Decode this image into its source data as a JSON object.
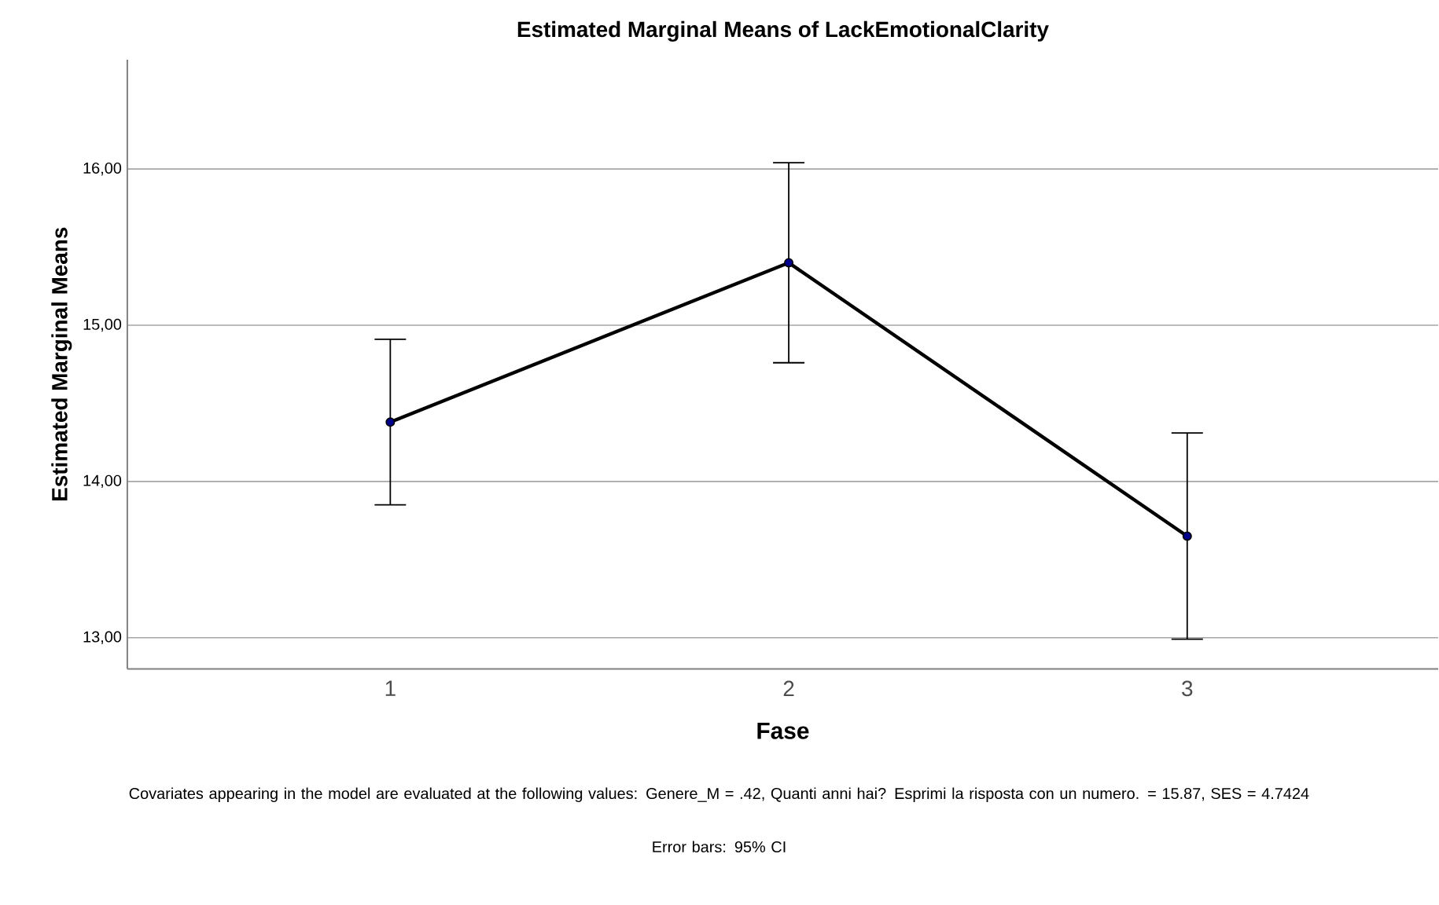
{
  "chart_data": {
    "type": "line",
    "title": "Estimated Marginal Means of LackEmotionalClarity",
    "xlabel": "Fase",
    "ylabel": "Estimated Marginal Means",
    "categories": [
      "1",
      "2",
      "3"
    ],
    "series": [
      {
        "color": "#000000",
        "values": [
          14.38,
          15.4,
          13.65
        ],
        "errors": [
          [
            13.85,
            14.91
          ],
          [
            14.76,
            16.04
          ],
          [
            12.99,
            14.31
          ]
        ]
      }
    ],
    "ylim": [
      12.8,
      16.7
    ],
    "yticks": [
      {
        "value": 13,
        "label": "13,00"
      },
      {
        "value": 14,
        "label": "14,00"
      },
      {
        "value": 15,
        "label": "15,00"
      },
      {
        "value": 16,
        "label": "16,00"
      }
    ],
    "grid": "y",
    "marker": "circle",
    "line_style": "solid",
    "annotations": [
      "Covariates appearing in the model are evaluated at the following values: Genere_M = .42, Quanti anni hai? Esprimi la risposta con un numero. = 15.87, SES = 4.7424",
      "Error bars: 95% CI"
    ]
  }
}
